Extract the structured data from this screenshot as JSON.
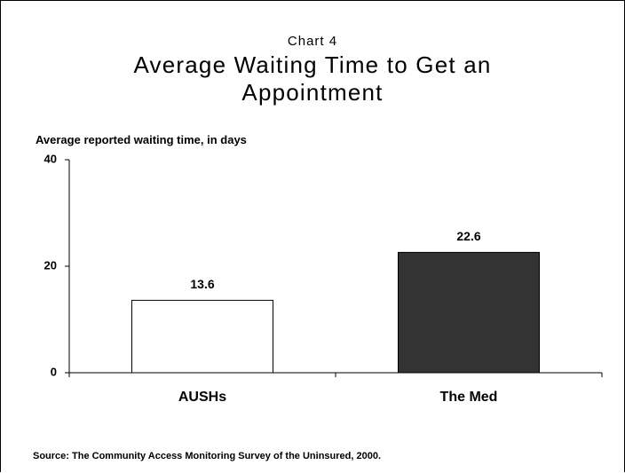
{
  "chart_data": {
    "type": "bar",
    "subtitle": "Chart 4",
    "title": "Average Waiting Time to Get an Appointment",
    "y_axis_label": "Average reported waiting time, in days",
    "categories": [
      "AUSHs",
      "The Med"
    ],
    "values": [
      13.6,
      22.6
    ],
    "colors": [
      "#ffffff",
      "#333333"
    ],
    "ylim": [
      0,
      40
    ],
    "yticks": [
      0,
      20,
      40
    ],
    "grid": false,
    "source": "Source: The Community Access Monitoring Survey of the Uninsured, 2000."
  }
}
